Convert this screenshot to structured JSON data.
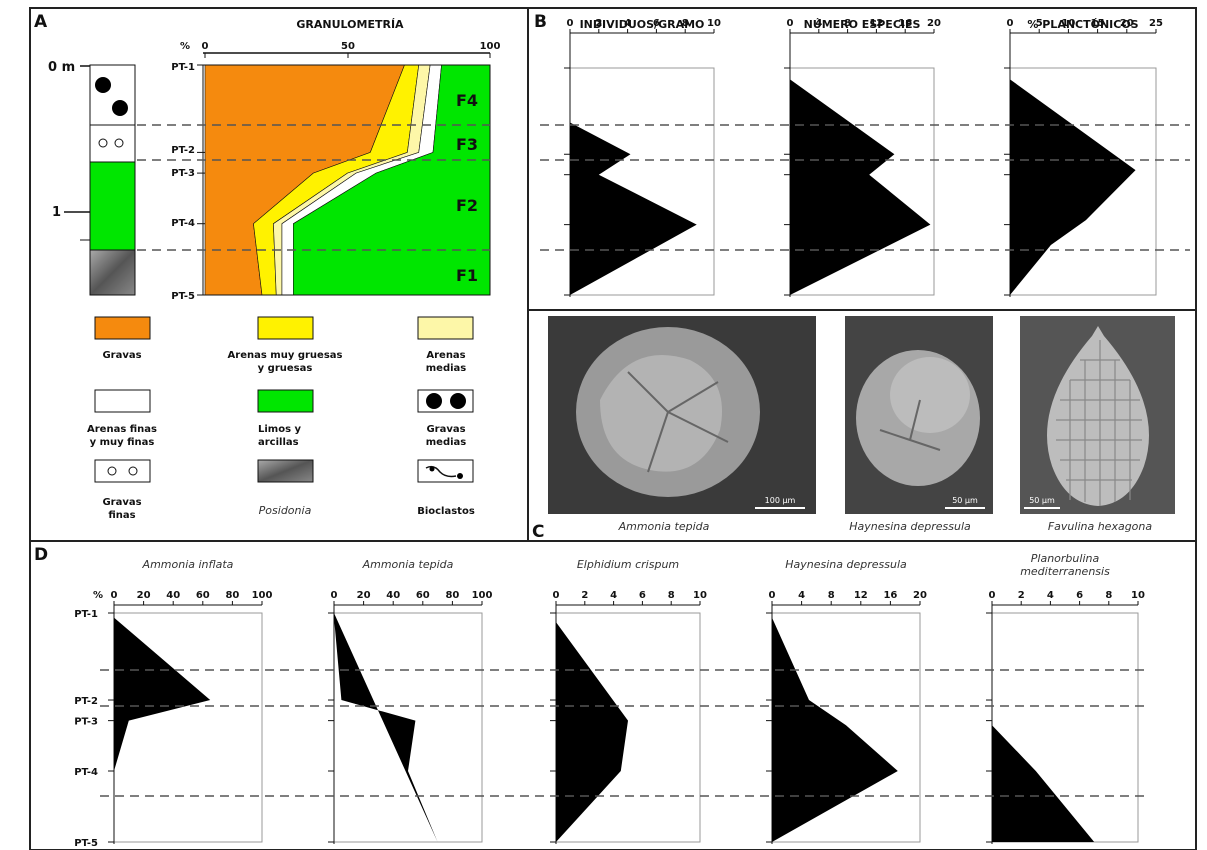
{
  "panels": {
    "A": "A",
    "B": "B",
    "C": "C",
    "D": "D"
  },
  "colors": {
    "gravas": "#f58a0e",
    "arenas_gruesas": "#fff200",
    "arenas_medias": "#fdf7a8",
    "arenas_finas": "#ffffff",
    "limos": "#00e600",
    "profile": "#000000",
    "dash": "#555555"
  },
  "samples": [
    "PT-1",
    "PT-2",
    "PT-3",
    "PT-4",
    "PT-5"
  ],
  "depth_labels": [
    "0 m",
    "1"
  ],
  "granulometria": {
    "title": "GRANULOMETRÍA",
    "pct_label": "%",
    "ticks": [
      "0",
      "50",
      "100"
    ],
    "facies": [
      "F4",
      "F3",
      "F2",
      "F1"
    ]
  },
  "legend": {
    "gravas": "Gravas",
    "arenas_gruesas": [
      "Arenas muy gruesas",
      "y gruesas"
    ],
    "arenas_medias": [
      "Arenas",
      "medias"
    ],
    "arenas_finas": [
      "Arenas finas",
      "y muy finas"
    ],
    "limos": [
      "Limos y",
      "arcillas"
    ],
    "gravas_medias": [
      "Gravas",
      "medias"
    ],
    "gravas_finas": [
      "Gravas",
      "finas"
    ],
    "posidonia": "Posidonia",
    "bioclastos": "Bioclastos"
  },
  "chart_data": [
    {
      "type": "area",
      "title": "GRANULOMETRÍA",
      "ylabel": "",
      "xlabel": "%",
      "xlim": [
        0,
        100
      ],
      "x_ticks": [
        0,
        50,
        100
      ],
      "categories": [
        "PT-1",
        "PT-2",
        "PT-3",
        "PT-4",
        "PT-5"
      ],
      "y_positions": [
        0,
        0.38,
        0.47,
        0.69,
        1.0
      ],
      "series": [
        {
          "name": "Gravas",
          "values": [
            70,
            58,
            38,
            17,
            20
          ]
        },
        {
          "name": "Arenas muy gruesas y gruesas",
          "values": [
            5,
            13,
            12,
            7,
            5
          ]
        },
        {
          "name": "Arenas medias",
          "values": [
            4,
            4,
            3,
            3,
            2
          ]
        },
        {
          "name": "Arenas finas y muy finas",
          "values": [
            4,
            5,
            7,
            4,
            4
          ]
        },
        {
          "name": "Limos y arcillas",
          "values": [
            17,
            20,
            40,
            69,
            69
          ]
        }
      ]
    },
    {
      "type": "area",
      "title": "INDIVIDUOS/GRAMO",
      "xlim": [
        0,
        10
      ],
      "x_ticks": [
        0,
        2,
        4,
        6,
        8,
        10
      ],
      "points": [
        [
          0,
          0
        ],
        [
          0,
          0.24
        ],
        [
          4.2,
          0.38
        ],
        [
          2,
          0.47
        ],
        [
          8.8,
          0.69
        ],
        [
          0,
          1.0
        ]
      ]
    },
    {
      "type": "area",
      "title": "NÚMERO ESPECIES",
      "xlim": [
        0,
        20
      ],
      "x_ticks": [
        0,
        4,
        8,
        12,
        16,
        20
      ],
      "points": [
        [
          0,
          0
        ],
        [
          0,
          0.05
        ],
        [
          14.5,
          0.38
        ],
        [
          11,
          0.47
        ],
        [
          19.5,
          0.69
        ],
        [
          0,
          1.0
        ]
      ]
    },
    {
      "type": "area",
      "title": "% PLANCTÓNICOS",
      "xlim": [
        0,
        25
      ],
      "x_ticks": [
        0,
        5,
        10,
        15,
        20,
        25
      ],
      "points": [
        [
          0,
          0
        ],
        [
          0,
          0.05
        ],
        [
          21.5,
          0.45
        ],
        [
          13,
          0.67
        ],
        [
          7,
          0.78
        ],
        [
          0,
          1.0
        ]
      ]
    },
    {
      "type": "area",
      "title": "Ammonia inflata",
      "xlim": [
        0,
        100
      ],
      "x_ticks": [
        0,
        20,
        40,
        60,
        80,
        100
      ],
      "points": [
        [
          0,
          0
        ],
        [
          0,
          0.02
        ],
        [
          65,
          0.38
        ],
        [
          10,
          0.47
        ],
        [
          0,
          0.69
        ],
        [
          0,
          1.0
        ]
      ]
    },
    {
      "type": "area",
      "title": "Ammonia tepida",
      "xlim": [
        0,
        100
      ],
      "x_ticks": [
        0,
        20,
        40,
        60,
        80,
        100
      ],
      "points": [
        [
          0,
          0
        ],
        [
          0,
          0.02
        ],
        [
          5,
          0.38
        ],
        [
          55,
          0.47
        ],
        [
          50,
          0.69
        ],
        [
          70,
          1.0
        ]
      ]
    },
    {
      "type": "area",
      "title": "Elphidium crispum",
      "xlim": [
        0,
        10
      ],
      "x_ticks": [
        0,
        2,
        4,
        6,
        8,
        10
      ],
      "points": [
        [
          0,
          0
        ],
        [
          0,
          0.04
        ],
        [
          5,
          0.47
        ],
        [
          4.5,
          0.69
        ],
        [
          0,
          1.0
        ]
      ]
    },
    {
      "type": "area",
      "title": "Haynesina  depressula",
      "xlim": [
        0,
        20
      ],
      "x_ticks": [
        0,
        4,
        8,
        12,
        16,
        20
      ],
      "points": [
        [
          0,
          0
        ],
        [
          0,
          0.02
        ],
        [
          5,
          0.38
        ],
        [
          10,
          0.49
        ],
        [
          17,
          0.69
        ],
        [
          0,
          1.0
        ]
      ]
    },
    {
      "type": "area",
      "title": "Planorbulina mediterranensis",
      "xlim": [
        0,
        10
      ],
      "x_ticks": [
        0,
        2,
        4,
        6,
        8,
        10
      ],
      "points": [
        [
          0,
          0.47
        ],
        [
          0,
          0.49
        ],
        [
          3,
          0.69
        ],
        [
          7,
          1.0
        ],
        [
          0,
          1.0
        ]
      ]
    }
  ],
  "photos": [
    {
      "name": "Ammonia tepida",
      "scale": "100 µm"
    },
    {
      "name": "Haynesina depressula",
      "scale": "50 µm"
    },
    {
      "name": "Favulina hexagona",
      "scale": "50 µm"
    }
  ]
}
